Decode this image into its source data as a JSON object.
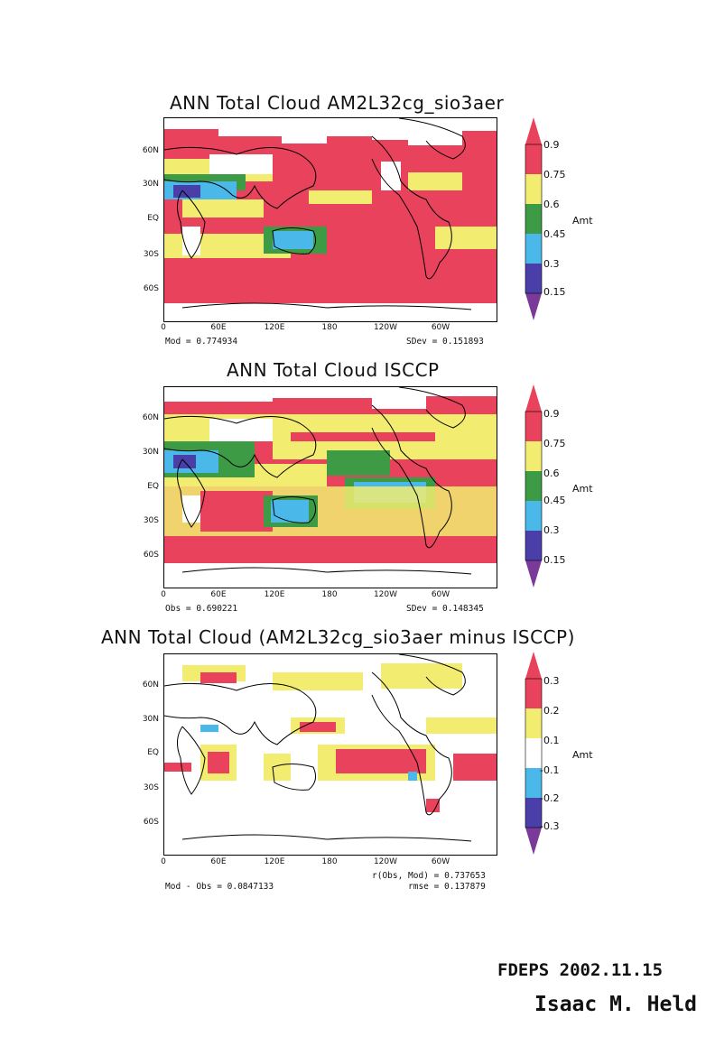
{
  "colors": {
    "c1": "#4a3fa8",
    "c2": "#4ab8e8",
    "c3": "#3d9b45",
    "c4": "#f2ec70",
    "c5": "#e8425c",
    "neg_tip": "#7a3a9a"
  },
  "panels": [
    {
      "title": "ANN Total Cloud AM2L32cg_sio3aer",
      "lat_labels": [
        "60N",
        "30N",
        "EQ",
        "30S",
        "60S"
      ],
      "lon_labels": [
        "0",
        "60E",
        "120E",
        "180",
        "120W",
        "60W"
      ],
      "stat_left": "Mod = 0.774934",
      "stat_right": "SDev = 0.151893",
      "colorbar": {
        "levels": [
          "0.9",
          "0.75",
          "0.6",
          "0.45",
          "0.3",
          "0.15"
        ],
        "units": "Amt"
      }
    },
    {
      "title": "ANN Total Cloud ISCCP",
      "lat_labels": [
        "60N",
        "30N",
        "EQ",
        "30S",
        "60S"
      ],
      "lon_labels": [
        "0",
        "60E",
        "120E",
        "180",
        "120W",
        "60W"
      ],
      "stat_left": "Obs = 0.690221",
      "stat_right": "SDev = 0.148345",
      "colorbar": {
        "levels": [
          "0.9",
          "0.75",
          "0.6",
          "0.45",
          "0.3",
          "0.15"
        ],
        "units": "Amt"
      }
    },
    {
      "title": "ANN Total Cloud (AM2L32cg_sio3aer minus ISCCP)",
      "lat_labels": [
        "60N",
        "30N",
        "EQ",
        "30S",
        "60S"
      ],
      "lon_labels": [
        "0",
        "60E",
        "120E",
        "180",
        "120W",
        "60W"
      ],
      "stat_left": "Mod - Obs = 0.0847133",
      "stat_right_1": "r(Obs, Mod) = 0.737653",
      "stat_right_2": "rmse = 0.137879",
      "colorbar": {
        "levels": [
          "0.3",
          "0.2",
          "0.1",
          "-0.1",
          "-0.2",
          "-0.3"
        ],
        "units": "Amt"
      }
    }
  ],
  "annotation": {
    "line1": "FDEPS 2002.11.15",
    "line2": "Isaac M. Held"
  }
}
